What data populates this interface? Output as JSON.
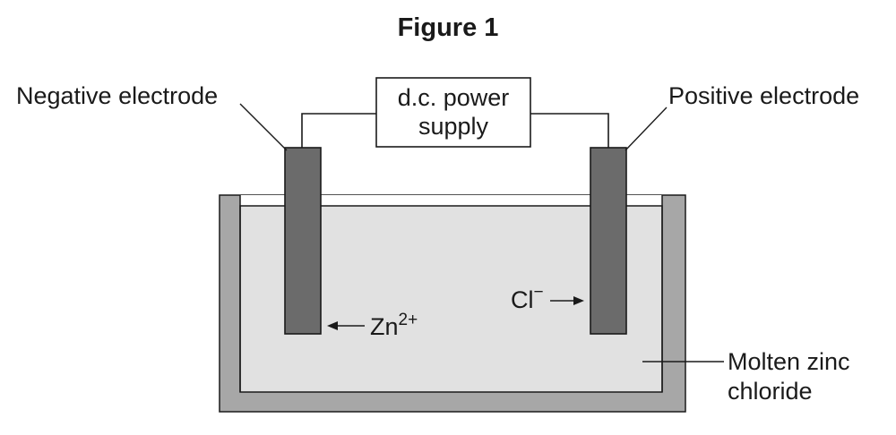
{
  "figure": {
    "title": "Figure 1"
  },
  "labels": {
    "negative_electrode": "Negative electrode",
    "positive_electrode": "Positive electrode",
    "power_supply_line1": "d.c. power",
    "power_supply_line2": "supply",
    "zinc_ion": "Zn",
    "zinc_ion_charge": "2+",
    "chloride_ion": "Cl",
    "chloride_ion_charge": "−",
    "electrolyte_line1": "Molten zinc",
    "electrolyte_line2": "chloride"
  },
  "colors": {
    "electrode": "#6b6b6b",
    "container_wall": "#a7a7a7",
    "electrolyte": "#e1e1e1",
    "line": "#1a1a1a"
  }
}
